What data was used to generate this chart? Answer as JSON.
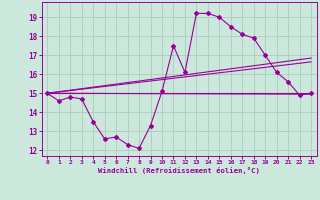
{
  "xlabel": "Windchill (Refroidissement éolien,°C)",
  "bg_color": "#cce8dd",
  "grid_color": "#aaccbb",
  "line_color": "#990099",
  "xlim": [
    -0.5,
    23.5
  ],
  "ylim": [
    11.7,
    19.8
  ],
  "yticks": [
    12,
    13,
    14,
    15,
    16,
    17,
    18,
    19
  ],
  "xticks": [
    0,
    1,
    2,
    3,
    4,
    5,
    6,
    7,
    8,
    9,
    10,
    11,
    12,
    13,
    14,
    15,
    16,
    17,
    18,
    19,
    20,
    21,
    22,
    23
  ],
  "series1_x": [
    0,
    1,
    2,
    3,
    4,
    5,
    6,
    7,
    8,
    9,
    10,
    11,
    12,
    13,
    14,
    15,
    16,
    17,
    18,
    19,
    20,
    21,
    22,
    23
  ],
  "series1_y": [
    15.0,
    14.6,
    14.8,
    14.7,
    13.5,
    12.6,
    12.7,
    12.3,
    12.1,
    13.3,
    15.1,
    17.5,
    16.1,
    19.2,
    19.2,
    19.0,
    18.5,
    18.1,
    17.9,
    17.0,
    16.1,
    15.6,
    14.9,
    15.0
  ],
  "line1_x": [
    0,
    23
  ],
  "line1_y": [
    15.0,
    15.0
  ],
  "line2_x": [
    0,
    23
  ],
  "line2_y": [
    15.0,
    14.95
  ],
  "line3_x": [
    0,
    23
  ],
  "line3_y": [
    15.0,
    16.65
  ],
  "line4_x": [
    0,
    23
  ],
  "line4_y": [
    15.0,
    16.85
  ]
}
